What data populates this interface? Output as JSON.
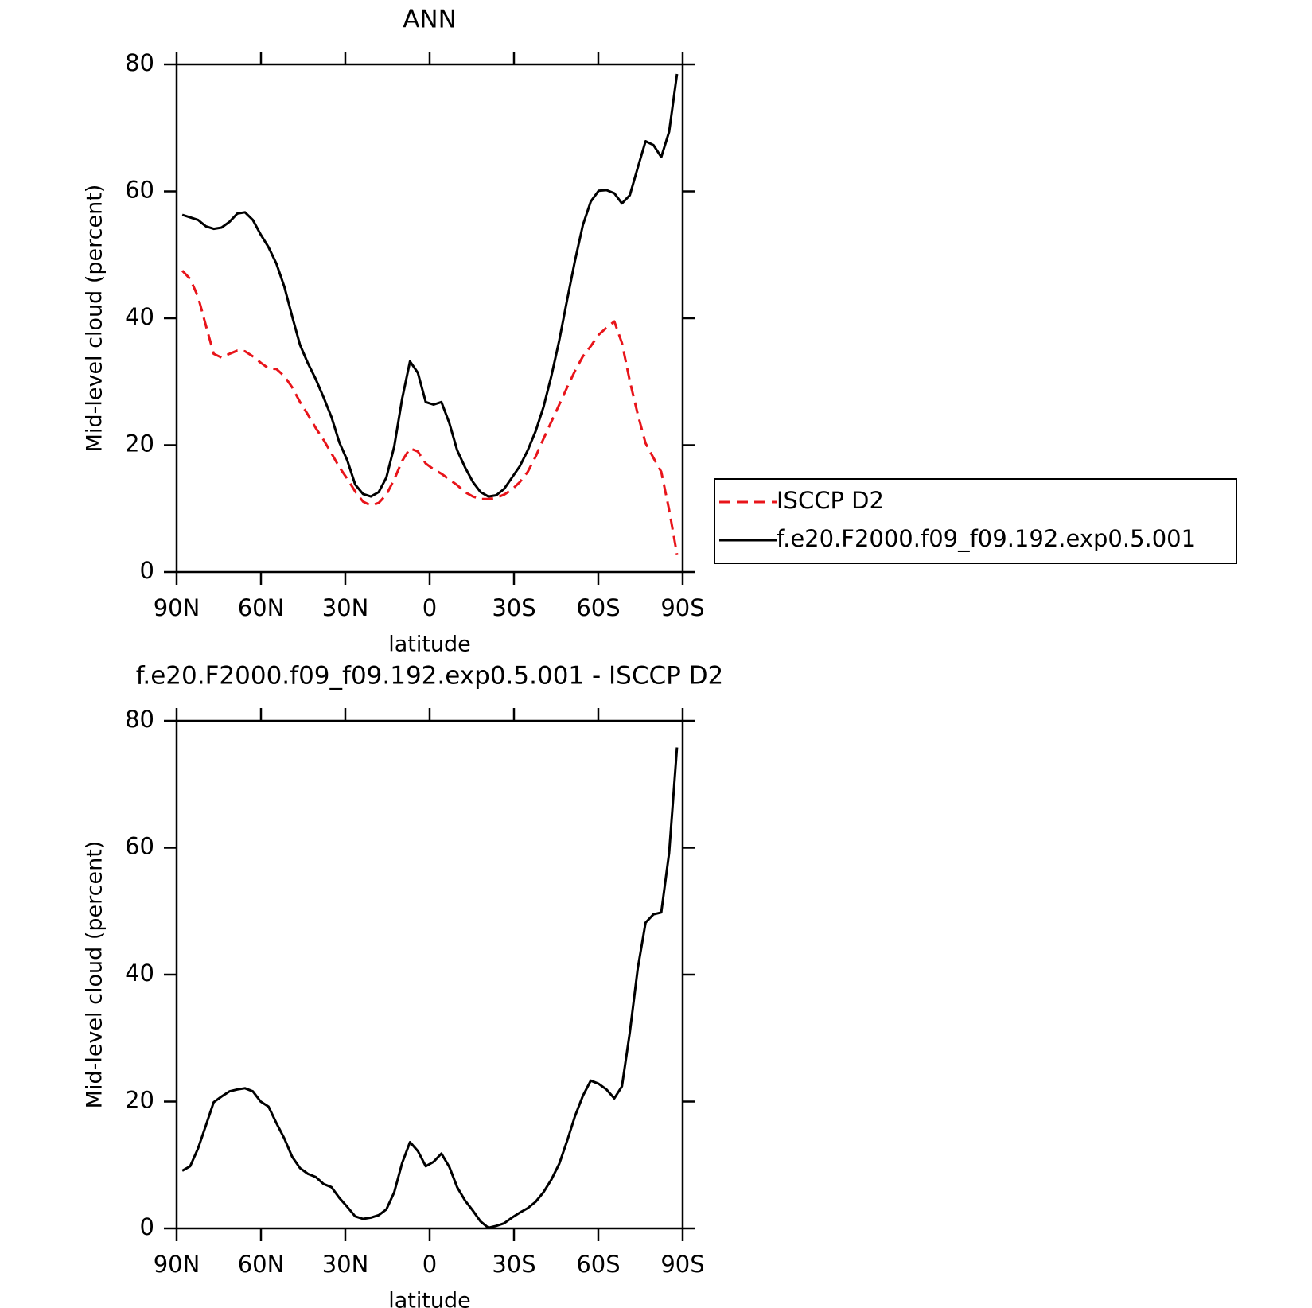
{
  "chart_data": [
    {
      "type": "line",
      "title": "ANN",
      "xlabel": "latitude",
      "ylabel": "Mid-level cloud (percent)",
      "x": [
        88.0,
        85.2,
        82.4,
        79.6,
        76.8,
        74.0,
        71.2,
        68.4,
        65.7,
        62.9,
        60.1,
        57.3,
        54.5,
        51.7,
        48.9,
        46.1,
        43.3,
        40.5,
        37.7,
        34.9,
        32.1,
        29.3,
        26.5,
        23.7,
        20.9,
        18.1,
        15.4,
        12.6,
        9.8,
        7.0,
        4.2,
        1.4,
        -1.4,
        -4.2,
        -7.0,
        -9.8,
        -12.6,
        -15.4,
        -18.1,
        -20.9,
        -23.7,
        -26.5,
        -29.3,
        -32.1,
        -34.9,
        -37.7,
        -40.5,
        -43.3,
        -46.1,
        -48.9,
        -51.7,
        -54.5,
        -57.3,
        -60.1,
        -62.9,
        -65.7,
        -68.4,
        -71.2,
        -74.0,
        -76.8,
        -79.6,
        -82.4,
        -85.2,
        -88.0
      ],
      "series": [
        {
          "name": "ISCCP D2",
          "color": "#e8141a",
          "dashed": true,
          "values": [
            47.5,
            46.2,
            43.4,
            38.9,
            34.4,
            33.8,
            34.4,
            34.9,
            34.8,
            34,
            33,
            32.1,
            32,
            30.9,
            29.1,
            26.8,
            24.8,
            22.7,
            20.8,
            18.7,
            16.5,
            14.7,
            12.7,
            11.1,
            10.5,
            10.9,
            12.2,
            14.6,
            17.5,
            19.5,
            19,
            17.1,
            16.2,
            15.5,
            14.6,
            13.7,
            12.6,
            11.9,
            11.5,
            11.5,
            11.7,
            12.2,
            13,
            14.2,
            15.8,
            18.2,
            21,
            23.7,
            26.4,
            29.1,
            31.7,
            34,
            35.6,
            37.4,
            38.5,
            39.5,
            36.1,
            30.1,
            24.9,
            20.3,
            18,
            15.8,
            9.8,
            2.8
          ]
        },
        {
          "name": "f.e20.F2000.f09_f09.192.exp0.5.001",
          "color": "#000000",
          "dashed": false,
          "values": [
            56.3,
            55.9,
            55.5,
            54.5,
            54.1,
            54.3,
            55.2,
            56.5,
            56.7,
            55.5,
            53.2,
            51.2,
            48.6,
            45,
            40.3,
            35.8,
            32.9,
            30.4,
            27.5,
            24.4,
            20.4,
            17.6,
            13.8,
            12.3,
            11.9,
            12.6,
            14.9,
            19.8,
            27.3,
            33.2,
            31.4,
            26.8,
            26.4,
            26.8,
            23.5,
            19.2,
            16.5,
            14.2,
            12.6,
            11.9,
            12.1,
            13.1,
            14.9,
            16.7,
            19.2,
            22.2,
            26,
            30.9,
            36.5,
            42.9,
            49.1,
            54.7,
            58.4,
            60.1,
            60.2,
            59.7,
            58.1,
            59.4,
            63.7,
            67.9,
            67.3,
            65.4,
            69.4,
            78.5
          ]
        }
      ],
      "xlim": [
        90,
        -90
      ],
      "xticks": [
        {
          "value": 90,
          "label": "90N"
        },
        {
          "value": 60,
          "label": "60N"
        },
        {
          "value": 30,
          "label": "30N"
        },
        0,
        {
          "value": -30,
          "label": "30S"
        },
        {
          "value": -60,
          "label": "60S"
        },
        {
          "value": -90,
          "label": "90S"
        }
      ],
      "ylim": [
        0,
        80
      ],
      "yticks": [
        0,
        20,
        40,
        60,
        80
      ],
      "legend": "right"
    },
    {
      "type": "line",
      "title": "f.e20.F2000.f09_f09.192.exp0.5.001 - ISCCP D2",
      "xlabel": "latitude",
      "ylabel": "Mid-level cloud (percent)",
      "x": [
        88.0,
        85.2,
        82.4,
        79.6,
        76.8,
        74.0,
        71.2,
        68.4,
        65.7,
        62.9,
        60.1,
        57.3,
        54.5,
        51.7,
        48.9,
        46.1,
        43.3,
        40.5,
        37.7,
        34.9,
        32.1,
        29.3,
        26.5,
        23.7,
        20.9,
        18.1,
        15.4,
        12.6,
        9.8,
        7.0,
        4.2,
        1.4,
        -1.4,
        -4.2,
        -7.0,
        -9.8,
        -12.6,
        -15.4,
        -18.1,
        -20.9,
        -23.7,
        -26.5,
        -29.3,
        -32.1,
        -34.9,
        -37.7,
        -40.5,
        -43.3,
        -46.1,
        -48.9,
        -51.7,
        -54.5,
        -57.3,
        -60.1,
        -62.9,
        -65.7,
        -68.4,
        -71.2,
        -74.0,
        -76.8,
        -79.6,
        -82.4,
        -85.2,
        -88.0
      ],
      "series": [
        {
          "color": "#000000",
          "dashed": false,
          "values": [
            9.1,
            9.8,
            12.6,
            16.2,
            19.9,
            20.8,
            21.6,
            21.9,
            22.1,
            21.6,
            20,
            19.2,
            16.6,
            14.2,
            11.3,
            9.5,
            8.6,
            8.1,
            7,
            6.5,
            4.8,
            3.4,
            1.9,
            1.5,
            1.7,
            2.1,
            3,
            5.7,
            10.3,
            13.6,
            12.2,
            9.8,
            10.5,
            11.8,
            9.7,
            6.5,
            4.4,
            2.8,
            1.1,
            0.1,
            0.4,
            0.8,
            1.7,
            2.5,
            3.2,
            4.2,
            5.7,
            7.7,
            10.2,
            13.8,
            17.7,
            20.9,
            23.3,
            22.8,
            21.9,
            20.5,
            22.4,
            30.9,
            40.9,
            48.2,
            49.5,
            49.8,
            59.2,
            75.8
          ]
        }
      ],
      "xlim": [
        90,
        -90
      ],
      "xticks": [
        {
          "value": 90,
          "label": "90N"
        },
        {
          "value": 60,
          "label": "60N"
        },
        {
          "value": 30,
          "label": "30N"
        },
        0,
        {
          "value": -30,
          "label": "30S"
        },
        {
          "value": -60,
          "label": "60S"
        },
        {
          "value": -90,
          "label": "90S"
        }
      ],
      "ylim": [
        0,
        80
      ],
      "yticks": [
        0,
        20,
        40,
        60,
        80
      ]
    }
  ]
}
